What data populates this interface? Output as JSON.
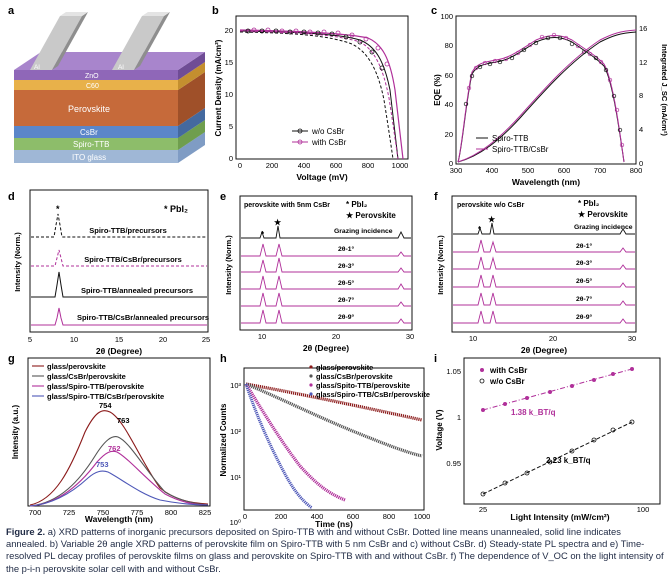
{
  "panels": {
    "a": {
      "letter": "a",
      "layers": [
        "ITO glass",
        "Spiro-TTB",
        "CsBr",
        "Perovskite",
        "C60",
        "ZnO"
      ],
      "electrodes": [
        "Al",
        "Al"
      ]
    },
    "b": {
      "letter": "b",
      "ylabel": "Current Density (mA/cm²)",
      "xlabel": "Voltage (mV)",
      "xticks": [
        "0",
        "200",
        "400",
        "600",
        "800",
        "1000"
      ],
      "yticks": [
        "0",
        "5",
        "10",
        "15",
        "20"
      ],
      "legend": [
        "w/o CsBr",
        "with CsBr"
      ]
    },
    "c": {
      "letter": "c",
      "ylabel_left": "EQE (%)",
      "ylabel_right": "Integrated J_SC (mA/cm²)",
      "xlabel": "Wavelength (nm)",
      "xticks": [
        "300",
        "400",
        "500",
        "600",
        "700",
        "800"
      ],
      "yticks_left": [
        "0",
        "20",
        "40",
        "60",
        "80",
        "100"
      ],
      "yticks_right": [
        "0",
        "4",
        "8",
        "12",
        "16"
      ],
      "legend": [
        "Spiro-TTB",
        "Spiro-TTB/CsBr"
      ]
    },
    "d": {
      "letter": "d",
      "ylabel": "Intensity (Norm.)",
      "xlabel": "2θ (Degree)",
      "xticks": [
        "5",
        "10",
        "15",
        "20",
        "25"
      ],
      "marker": "* PbI₂",
      "traces": [
        "Spiro-TTB/precursors",
        "Spiro-TTB/CsBr/precursors",
        "Spiro-TTB/annealed precursors",
        "Spiro-TTB/CsBr/annealed precursors"
      ]
    },
    "e": {
      "letter": "e",
      "title": "perovskite with 5nm CsBr",
      "ylabel": "Intensity (Norm.)",
      "xlabel": "2θ (Degree)",
      "xticks": [
        "10",
        "20",
        "30"
      ],
      "legend": [
        "* PbI₂",
        "★ Perovskite"
      ],
      "traces": [
        "Grazing incidence",
        "2θ-1°",
        "2θ-3°",
        "2θ-5°",
        "2θ-7°",
        "2θ-9°"
      ]
    },
    "f": {
      "letter": "f",
      "title": "perovskite w/o CsBr",
      "ylabel": "Intensity (Norm.)",
      "xlabel": "2θ (Degree)",
      "xticks": [
        "10",
        "20",
        "30"
      ],
      "legend": [
        "* PbI₂",
        "★ Perovskite"
      ],
      "traces": [
        "Grazing incidence",
        "2θ-1°",
        "2θ-3°",
        "2θ-5°",
        "2θ-7°",
        "2θ-9°"
      ]
    },
    "g": {
      "letter": "g",
      "ylabel": "Intensity (a.u.)",
      "xlabel": "Wavelength (nm)",
      "xticks": [
        "700",
        "725",
        "750",
        "775",
        "800",
        "825"
      ],
      "legend": [
        "glass/perovskite",
        "glass/CsBr/perovskite",
        "glass/Spiro-TTB/perovskite",
        "glass/Spiro-TTB/CsBr/perovskite"
      ],
      "peak_labels": [
        "754",
        "763",
        "762",
        "753"
      ]
    },
    "h": {
      "letter": "h",
      "ylabel": "Normalized Counts",
      "xlabel": "Time (ns)",
      "xticks": [
        "0",
        "200",
        "400",
        "600",
        "800",
        "1000"
      ],
      "yticks": [
        "10³",
        "10²",
        "10¹",
        "10⁰"
      ],
      "legend": [
        "glass/perovskite",
        "glass/CsBr/perovskite",
        "glass/Spito-TTB/perovskite",
        "glass/Spiro-TTB/CsBr/perovskite"
      ]
    },
    "i": {
      "letter": "i",
      "ylabel": "Voltage (V)",
      "xlabel": "Light Intensity (mW/cm²)",
      "xticks": [
        "25",
        "100"
      ],
      "yticks": [
        "1.05",
        "1",
        "0.95"
      ],
      "legend": [
        "with CsBr",
        "w/o CsBr"
      ],
      "annot1": "1.38 k_BT/q",
      "annot2": "2.23 k_BT/q"
    }
  },
  "caption": {
    "label": "Figure 2.",
    "text": "a) XRD patterns of inorganic precursors deposited on Spiro-TTB with and without CsBr. Dotted line means unannealed, solid line indicates annealed. b) Variable 2θ angle XRD patterns of perovskite film on Spiro-TTB with 5 nm CsBr and c) without CsBr. d) Steady-state PL spectra and e) Time-resolved PL decay profiles of perovskite films on glass and perovskite on Spiro-TTB with and without CsBr. f) The dependence of V_OC on the light intensity of the p-i-n perovskite solar cell with and without CsBr."
  },
  "colors": {
    "black": "#111111",
    "magenta": "#b0309a",
    "light_magenta": "#cf7ec2",
    "blue": "#4e58b8",
    "dark_red": "#8b1a1a",
    "gray": "#555555"
  }
}
